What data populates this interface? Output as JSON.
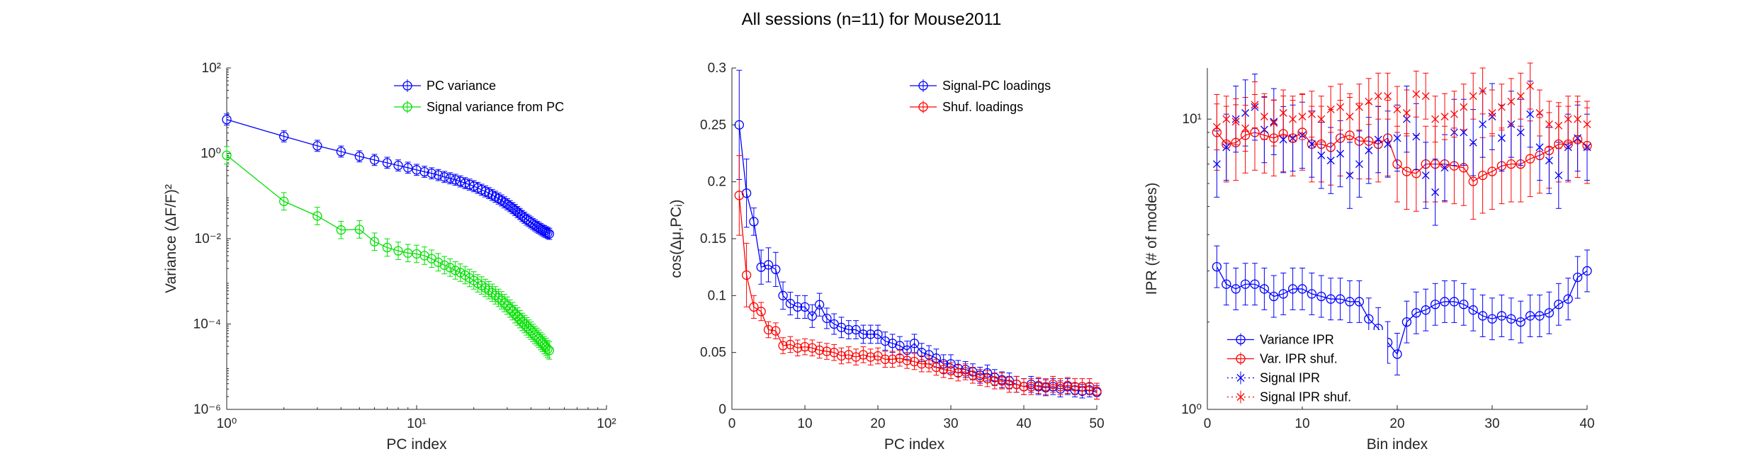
{
  "figure": {
    "title": "All sessions (n=11) for Mouse2011"
  },
  "chart_data": [
    {
      "type": "line",
      "title": "",
      "xlabel": "PC index",
      "ylabel": "Variance (ΔF/F)²",
      "xscale": "log",
      "yscale": "log",
      "xlim": [
        1,
        100
      ],
      "ylim": [
        1e-06,
        100
      ],
      "xticks": [
        1,
        10,
        100
      ],
      "xticklabels": [
        "10⁰",
        "10¹",
        "10²"
      ],
      "yticks": [
        1e-06,
        0.0001,
        0.01,
        1,
        100
      ],
      "yticklabels": [
        "10⁻⁶",
        "10⁻⁴",
        "10⁻²",
        "10⁰",
        "10²"
      ],
      "grid": false,
      "legend_position": "top-right",
      "series": [
        {
          "name": "PC variance",
          "color": "#0000ff",
          "marker": "circle",
          "x": [
            1,
            2,
            3,
            4,
            5,
            6,
            7,
            8,
            9,
            10,
            11,
            12,
            13,
            14,
            15,
            16,
            17,
            18,
            19,
            20,
            21,
            22,
            23,
            24,
            25,
            26,
            27,
            28,
            29,
            30,
            31,
            32,
            33,
            34,
            35,
            36,
            37,
            38,
            39,
            40,
            41,
            42,
            43,
            44,
            45,
            46,
            47,
            48,
            49,
            50
          ],
          "y": [
            6.2,
            2.5,
            1.5,
            1.1,
            0.85,
            0.7,
            0.6,
            0.52,
            0.46,
            0.41,
            0.37,
            0.34,
            0.31,
            0.28,
            0.26,
            0.24,
            0.22,
            0.2,
            0.185,
            0.17,
            0.155,
            0.14,
            0.128,
            0.117,
            0.106,
            0.096,
            0.087,
            0.079,
            0.071,
            0.064,
            0.058,
            0.052,
            0.047,
            0.042,
            0.038,
            0.034,
            0.031,
            0.028,
            0.026,
            0.024,
            0.022,
            0.0205,
            0.019,
            0.018,
            0.0168,
            0.0158,
            0.015,
            0.0142,
            0.0136,
            0.013
          ],
          "err_factor": 1.35
        },
        {
          "name": "Signal variance from PC",
          "color": "#00e000",
          "marker": "circle",
          "x": [
            1,
            2,
            3,
            4,
            5,
            6,
            7,
            8,
            9,
            10,
            11,
            12,
            13,
            14,
            15,
            16,
            17,
            18,
            19,
            20,
            21,
            22,
            23,
            24,
            25,
            26,
            27,
            28,
            29,
            30,
            31,
            32,
            33,
            34,
            35,
            36,
            37,
            38,
            39,
            40,
            41,
            42,
            43,
            44,
            45,
            46,
            47,
            48,
            49,
            50
          ],
          "y": [
            0.9,
            0.075,
            0.034,
            0.016,
            0.0165,
            0.0085,
            0.0062,
            0.0052,
            0.0046,
            0.0044,
            0.004,
            0.0034,
            0.0028,
            0.0024,
            0.0021,
            0.0018,
            0.0016,
            0.0014,
            0.0012,
            0.00105,
            0.0009,
            0.0008,
            0.0007,
            0.00062,
            0.00054,
            0.00047,
            0.00041,
            0.00036,
            0.00031,
            0.00027,
            0.00023,
            0.0002,
            0.00017,
            0.00015,
            0.00013,
            0.000112,
            0.0001,
            8.8e-05,
            7.8e-05,
            7e-05,
            6.2e-05,
            5.5e-05,
            5e-05,
            4.5e-05,
            4e-05,
            3.6e-05,
            3.2e-05,
            2.9e-05,
            2.6e-05,
            2.4e-05
          ],
          "err_factor": 1.6
        }
      ]
    },
    {
      "type": "line",
      "title": "",
      "xlabel": "PC index",
      "ylabel": "cos(Δμ,PCᵢ)",
      "xlim": [
        0,
        50
      ],
      "ylim": [
        0,
        0.3
      ],
      "xticks": [
        0,
        10,
        20,
        30,
        40,
        50
      ],
      "xticklabels": [
        "0",
        "10",
        "20",
        "30",
        "40",
        "50"
      ],
      "yticks": [
        0,
        0.05,
        0.1,
        0.15,
        0.2,
        0.25,
        0.3
      ],
      "yticklabels": [
        "0",
        "0.05",
        "0.1",
        "0.15",
        "0.2",
        "0.25",
        "0.3"
      ],
      "grid": false,
      "legend_position": "top-right",
      "series": [
        {
          "name": "Signal-PC loadings",
          "color": "#0000ff",
          "marker": "circle",
          "x": [
            1,
            2,
            3,
            4,
            5,
            6,
            7,
            8,
            9,
            10,
            11,
            12,
            13,
            14,
            15,
            16,
            17,
            18,
            19,
            20,
            21,
            22,
            23,
            24,
            25,
            26,
            27,
            28,
            29,
            30,
            31,
            32,
            33,
            34,
            35,
            36,
            37,
            38,
            39,
            40,
            41,
            42,
            43,
            44,
            45,
            46,
            47,
            48,
            49,
            50
          ],
          "y": [
            0.25,
            0.19,
            0.165,
            0.125,
            0.127,
            0.123,
            0.1,
            0.093,
            0.09,
            0.09,
            0.082,
            0.092,
            0.08,
            0.075,
            0.072,
            0.07,
            0.07,
            0.066,
            0.066,
            0.066,
            0.06,
            0.058,
            0.056,
            0.052,
            0.058,
            0.05,
            0.048,
            0.045,
            0.04,
            0.04,
            0.036,
            0.035,
            0.033,
            0.03,
            0.032,
            0.028,
            0.026,
            0.025,
            0.022,
            0.02,
            0.022,
            0.02,
            0.019,
            0.02,
            0.018,
            0.02,
            0.017,
            0.016,
            0.017,
            0.015
          ],
          "err": [
            0.048,
            0.03,
            0.012,
            0.015,
            0.015,
            0.015,
            0.012,
            0.01,
            0.01,
            0.01,
            0.01,
            0.01,
            0.009,
            0.009,
            0.009,
            0.008,
            0.008,
            0.008,
            0.008,
            0.008,
            0.008,
            0.008,
            0.008,
            0.008,
            0.008,
            0.008,
            0.008,
            0.008,
            0.008,
            0.008,
            0.007,
            0.007,
            0.007,
            0.007,
            0.007,
            0.007,
            0.007,
            0.007,
            0.007,
            0.007,
            0.007,
            0.007,
            0.007,
            0.007,
            0.007,
            0.007,
            0.006,
            0.006,
            0.006,
            0.006
          ]
        },
        {
          "name": "Shuf. loadings",
          "color": "#ff0000",
          "marker": "circle",
          "x": [
            1,
            2,
            3,
            4,
            5,
            6,
            7,
            8,
            9,
            10,
            11,
            12,
            13,
            14,
            15,
            16,
            17,
            18,
            19,
            20,
            21,
            22,
            23,
            24,
            25,
            26,
            27,
            28,
            29,
            30,
            31,
            32,
            33,
            34,
            35,
            36,
            37,
            38,
            39,
            40,
            41,
            42,
            43,
            44,
            45,
            46,
            47,
            48,
            49,
            50
          ],
          "y": [
            0.188,
            0.118,
            0.09,
            0.086,
            0.07,
            0.069,
            0.056,
            0.057,
            0.054,
            0.055,
            0.054,
            0.052,
            0.051,
            0.05,
            0.047,
            0.048,
            0.046,
            0.048,
            0.046,
            0.047,
            0.044,
            0.044,
            0.045,
            0.043,
            0.042,
            0.04,
            0.04,
            0.037,
            0.035,
            0.034,
            0.032,
            0.033,
            0.03,
            0.028,
            0.027,
            0.025,
            0.025,
            0.022,
            0.022,
            0.02,
            0.02,
            0.021,
            0.02,
            0.022,
            0.02,
            0.021,
            0.02,
            0.02,
            0.02,
            0.016
          ],
          "err": [
            0.035,
            0.028,
            0.01,
            0.008,
            0.007,
            0.007,
            0.007,
            0.007,
            0.007,
            0.007,
            0.007,
            0.007,
            0.007,
            0.007,
            0.007,
            0.007,
            0.007,
            0.007,
            0.007,
            0.007,
            0.007,
            0.007,
            0.007,
            0.007,
            0.007,
            0.007,
            0.007,
            0.007,
            0.007,
            0.007,
            0.007,
            0.007,
            0.007,
            0.007,
            0.007,
            0.007,
            0.007,
            0.007,
            0.007,
            0.007,
            0.007,
            0.007,
            0.007,
            0.007,
            0.007,
            0.007,
            0.007,
            0.007,
            0.007,
            0.007
          ]
        }
      ]
    },
    {
      "type": "line",
      "title": "",
      "xlabel": "Bin index",
      "ylabel": "IPR (# of modes)",
      "xlim": [
        0,
        40
      ],
      "ylim": [
        1,
        15
      ],
      "yscale": "log",
      "xticks": [
        0,
        10,
        20,
        30,
        40
      ],
      "xticklabels": [
        "0",
        "10",
        "20",
        "30",
        "40"
      ],
      "yticks": [
        1,
        10
      ],
      "yticklabels": [
        "10⁰",
        "10¹"
      ],
      "grid": false,
      "legend_position": "bottom-left",
      "series": [
        {
          "name": "Variance IPR",
          "color": "#0000ff",
          "marker": "circle",
          "linestyle": "solid",
          "x": [
            1,
            2,
            3,
            4,
            5,
            6,
            7,
            8,
            9,
            10,
            11,
            12,
            13,
            14,
            15,
            16,
            17,
            18,
            19,
            20,
            21,
            22,
            23,
            24,
            25,
            26,
            27,
            28,
            29,
            30,
            31,
            32,
            33,
            34,
            35,
            36,
            37,
            38,
            39,
            40
          ],
          "y": [
            3.1,
            2.7,
            2.6,
            2.7,
            2.7,
            2.6,
            2.45,
            2.5,
            2.6,
            2.6,
            2.5,
            2.45,
            2.4,
            2.4,
            2.35,
            2.35,
            2.05,
            1.9,
            1.7,
            1.55,
            2.0,
            2.15,
            2.2,
            2.3,
            2.35,
            2.35,
            2.3,
            2.2,
            2.1,
            2.05,
            2.1,
            2.05,
            2.0,
            2.1,
            2.1,
            2.15,
            2.3,
            2.4,
            2.85,
            3.0
          ],
          "err_factor": 1.18
        },
        {
          "name": "Var. IPR shuf.",
          "color": "#ff0000",
          "marker": "circle",
          "linestyle": "solid",
          "x": [
            1,
            2,
            3,
            4,
            5,
            6,
            7,
            8,
            9,
            10,
            11,
            12,
            13,
            14,
            15,
            16,
            17,
            18,
            19,
            20,
            21,
            22,
            23,
            24,
            25,
            26,
            27,
            28,
            29,
            30,
            31,
            32,
            33,
            34,
            35,
            36,
            37,
            38,
            39,
            40
          ],
          "y": [
            9.0,
            8.2,
            8.3,
            8.8,
            9.0,
            8.8,
            8.6,
            8.9,
            8.6,
            9.0,
            8.2,
            8.2,
            8.0,
            8.6,
            8.8,
            8.4,
            8.4,
            8.2,
            8.6,
            7.0,
            6.6,
            6.5,
            7.0,
            7.0,
            7.0,
            6.9,
            6.8,
            6.1,
            6.4,
            6.6,
            6.9,
            7.0,
            7.0,
            7.3,
            7.5,
            7.8,
            8.2,
            8.2,
            8.5,
            8.1
          ],
          "err_factor": 1.35
        },
        {
          "name": "Signal IPR",
          "color": "#0000ff",
          "marker": "x",
          "linestyle": "dotted",
          "x": [
            1,
            2,
            3,
            4,
            5,
            6,
            7,
            8,
            9,
            10,
            11,
            12,
            13,
            14,
            15,
            16,
            17,
            18,
            19,
            20,
            21,
            22,
            23,
            24,
            25,
            26,
            27,
            28,
            29,
            30,
            31,
            32,
            33,
            34,
            35,
            36,
            37,
            38,
            39,
            40
          ],
          "y": [
            7.0,
            8.0,
            10.0,
            10.5,
            11.0,
            9.2,
            9.8,
            8.5,
            8.6,
            8.8,
            8.2,
            7.5,
            7.2,
            7.6,
            6.4,
            7.0,
            7.8,
            8.5,
            8.2,
            8.6,
            10.0,
            8.7,
            6.4,
            5.6,
            6.8,
            9.0,
            9.0,
            8.3,
            9.6,
            10.2,
            8.6,
            9.6,
            9.0,
            10.4,
            8.0,
            7.2,
            6.4,
            8.0,
            8.6,
            8.0
          ],
          "err_factor": 1.3
        },
        {
          "name": "Signal IPR shuf.",
          "color": "#ff0000",
          "marker": "x",
          "linestyle": "dotted",
          "x": [
            1,
            2,
            3,
            4,
            5,
            6,
            7,
            8,
            9,
            10,
            11,
            12,
            13,
            14,
            15,
            16,
            17,
            18,
            19,
            20,
            21,
            22,
            23,
            24,
            25,
            26,
            27,
            28,
            29,
            30,
            31,
            32,
            33,
            34,
            35,
            36,
            37,
            38,
            39,
            40
          ],
          "y": [
            9.4,
            10.0,
            9.8,
            9.3,
            11.2,
            10.2,
            9.7,
            10.5,
            10.0,
            10.2,
            10.4,
            10.0,
            10.8,
            11.0,
            10.2,
            11.0,
            11.5,
            12.0,
            12.0,
            10.8,
            10.5,
            12.2,
            12.0,
            10.0,
            10.2,
            10.4,
            11.0,
            12.0,
            12.5,
            10.5,
            11.0,
            11.5,
            12.0,
            13.0,
            10.5,
            9.6,
            9.5,
            10.0,
            10.0,
            9.6
          ],
          "err_factor": 1.2
        }
      ]
    }
  ]
}
